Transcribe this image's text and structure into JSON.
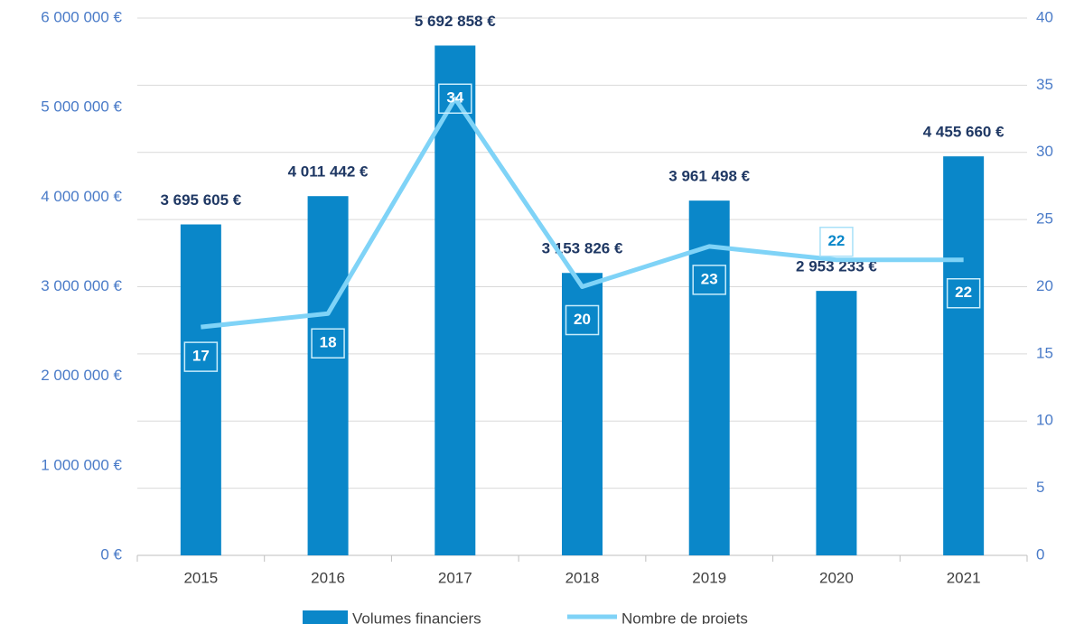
{
  "chart_data": {
    "type": "bar",
    "categories": [
      "2015",
      "2016",
      "2017",
      "2018",
      "2019",
      "2020",
      "2021"
    ],
    "series": [
      {
        "name": "Volumes financiers",
        "type": "bar",
        "color": "#0a87c9",
        "values": [
          3695605,
          4011442,
          5692858,
          3153826,
          3961498,
          2953233,
          4455660
        ],
        "value_labels": [
          "3 695 605 €",
          "4 011 442 €",
          "5 692 858 €",
          "3 153 826 €",
          "3 961 498 €",
          "2 953 233 €",
          "4 455 660 €"
        ]
      },
      {
        "name": "Nombre de projets",
        "type": "line",
        "color": "#7fd3f7",
        "axis": "y2",
        "values": [
          17,
          18,
          34,
          20,
          23,
          22,
          22
        ]
      }
    ],
    "ylim": [
      0,
      6000000
    ],
    "yticks": [
      {
        "value": 0,
        "label": "0 €"
      },
      {
        "value": 1000000,
        "label": "1 000 000 €"
      },
      {
        "value": 2000000,
        "label": "2 000 000 €"
      },
      {
        "value": 3000000,
        "label": "3 000 000 €"
      },
      {
        "value": 4000000,
        "label": "4 000 000 €"
      },
      {
        "value": 5000000,
        "label": "5 000 000 €"
      },
      {
        "value": 6000000,
        "label": "6 000 000 €"
      }
    ],
    "y2lim": [
      0,
      40
    ],
    "y2ticks": [
      0,
      5,
      10,
      15,
      20,
      25,
      30,
      35,
      40
    ],
    "grid": true,
    "legend": "bottom"
  }
}
